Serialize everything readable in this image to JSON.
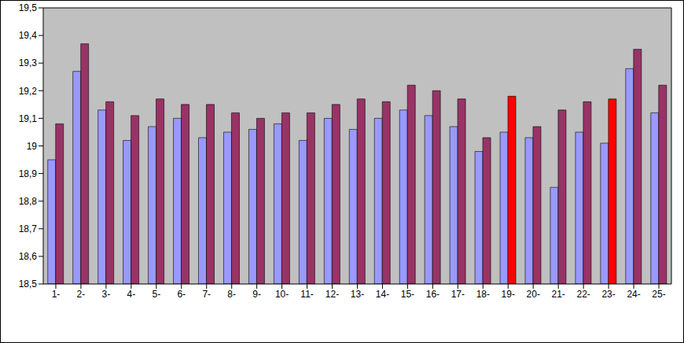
{
  "chart_data": {
    "type": "bar",
    "categories": [
      "1-",
      "2-",
      "3-",
      "4-",
      "5-",
      "6-",
      "7-",
      "8-",
      "9-",
      "10-",
      "11-",
      "12-",
      "13-",
      "14-",
      "15-",
      "16-",
      "17-",
      "18-",
      "19-",
      "20-",
      "21-",
      "22-",
      "23-",
      "24-",
      "25-"
    ],
    "series": [
      {
        "color": "#9999FF",
        "values": [
          18.95,
          19.27,
          19.13,
          19.02,
          19.07,
          19.1,
          19.03,
          19.05,
          19.06,
          19.08,
          19.02,
          19.1,
          19.06,
          19.1,
          19.13,
          19.11,
          19.07,
          18.98,
          19.05,
          19.03,
          18.85,
          19.05,
          19.01,
          19.28,
          19.12
        ]
      },
      {
        "color": "#993366",
        "colors": [
          "#993366",
          "#993366",
          "#993366",
          "#993366",
          "#993366",
          "#993366",
          "#993366",
          "#993366",
          "#993366",
          "#993366",
          "#993366",
          "#993366",
          "#993366",
          "#993366",
          "#993366",
          "#993366",
          "#993366",
          "#993366",
          "#FF0000",
          "#993366",
          "#993366",
          "#993366",
          "#FF0000",
          "#993366",
          "#993366"
        ],
        "values": [
          19.08,
          19.37,
          19.16,
          19.11,
          19.17,
          19.15,
          19.15,
          19.12,
          19.1,
          19.12,
          19.12,
          19.15,
          19.17,
          19.16,
          19.22,
          19.2,
          19.17,
          19.03,
          19.18,
          19.07,
          19.13,
          19.16,
          19.17,
          19.35,
          19.22
        ]
      }
    ],
    "ylim": [
      18.5,
      19.5
    ],
    "yticks": [
      {
        "value": 18.5,
        "label": "18,5"
      },
      {
        "value": 18.6,
        "label": "18,6"
      },
      {
        "value": 18.7,
        "label": "18,7"
      },
      {
        "value": 18.8,
        "label": "18,8"
      },
      {
        "value": 18.9,
        "label": "18,9"
      },
      19,
      {
        "value": 19.1,
        "label": "19,1"
      },
      {
        "value": 19.2,
        "label": "19,2"
      },
      {
        "value": 19.3,
        "label": "19,3"
      },
      {
        "value": 19.4,
        "label": "19,4"
      },
      {
        "value": 19.5,
        "label": "19,5"
      }
    ],
    "grid": false
  }
}
